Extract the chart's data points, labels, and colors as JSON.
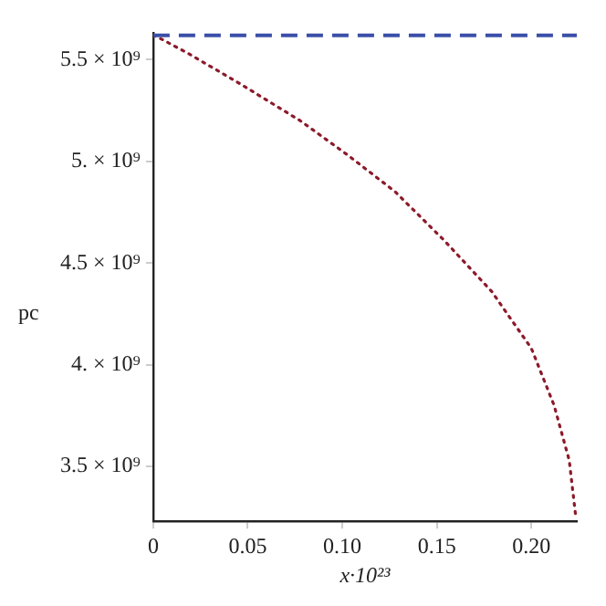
{
  "chart_data": {
    "type": "line",
    "xlabel": "x·10²³",
    "ylabel": "pc",
    "xlim": [
      0,
      0.224
    ],
    "ylim": [
      3230000000.0,
      5630000000.0
    ],
    "xticks": [
      0,
      0.05,
      {
        "value": 0.1,
        "label": "0.10"
      },
      0.15,
      {
        "value": 0.2,
        "label": "0.20"
      }
    ],
    "yticks": [
      {
        "value": 3500000000.0,
        "label": "3.5 × 10⁹"
      },
      {
        "value": 4000000000.0,
        "label": "4. × 10⁹"
      },
      {
        "value": 4500000000.0,
        "label": "4.5 × 10⁹"
      },
      {
        "value": 5000000000.0,
        "label": "5. × 10⁹"
      },
      {
        "value": 5500000000.0,
        "label": "5.5 × 10⁹"
      }
    ],
    "series": [
      {
        "color": "#8b1a2a",
        "line_style": "dotted",
        "marker": "none",
        "x": [
          0,
          0.0046,
          0.0186,
          0.0462,
          0.0777,
          0.103,
          0.128,
          0.154,
          0.179,
          0.2,
          0.212,
          0.22,
          0.2236
        ],
        "values": [
          5620000000.0,
          5600000000.0,
          5530000000.0,
          5380000000.0,
          5200000000.0,
          5030000000.0,
          4850000000.0,
          4610000000.0,
          4360000000.0,
          4080000000.0,
          3800000000.0,
          3530000000.0,
          3240000000.0
        ]
      }
    ],
    "ref_lines": [
      {
        "axis": "y",
        "value": 5620000000.0,
        "color": "#3a4fa8",
        "line_style": "dashed"
      }
    ],
    "grid": false,
    "legend": false
  }
}
